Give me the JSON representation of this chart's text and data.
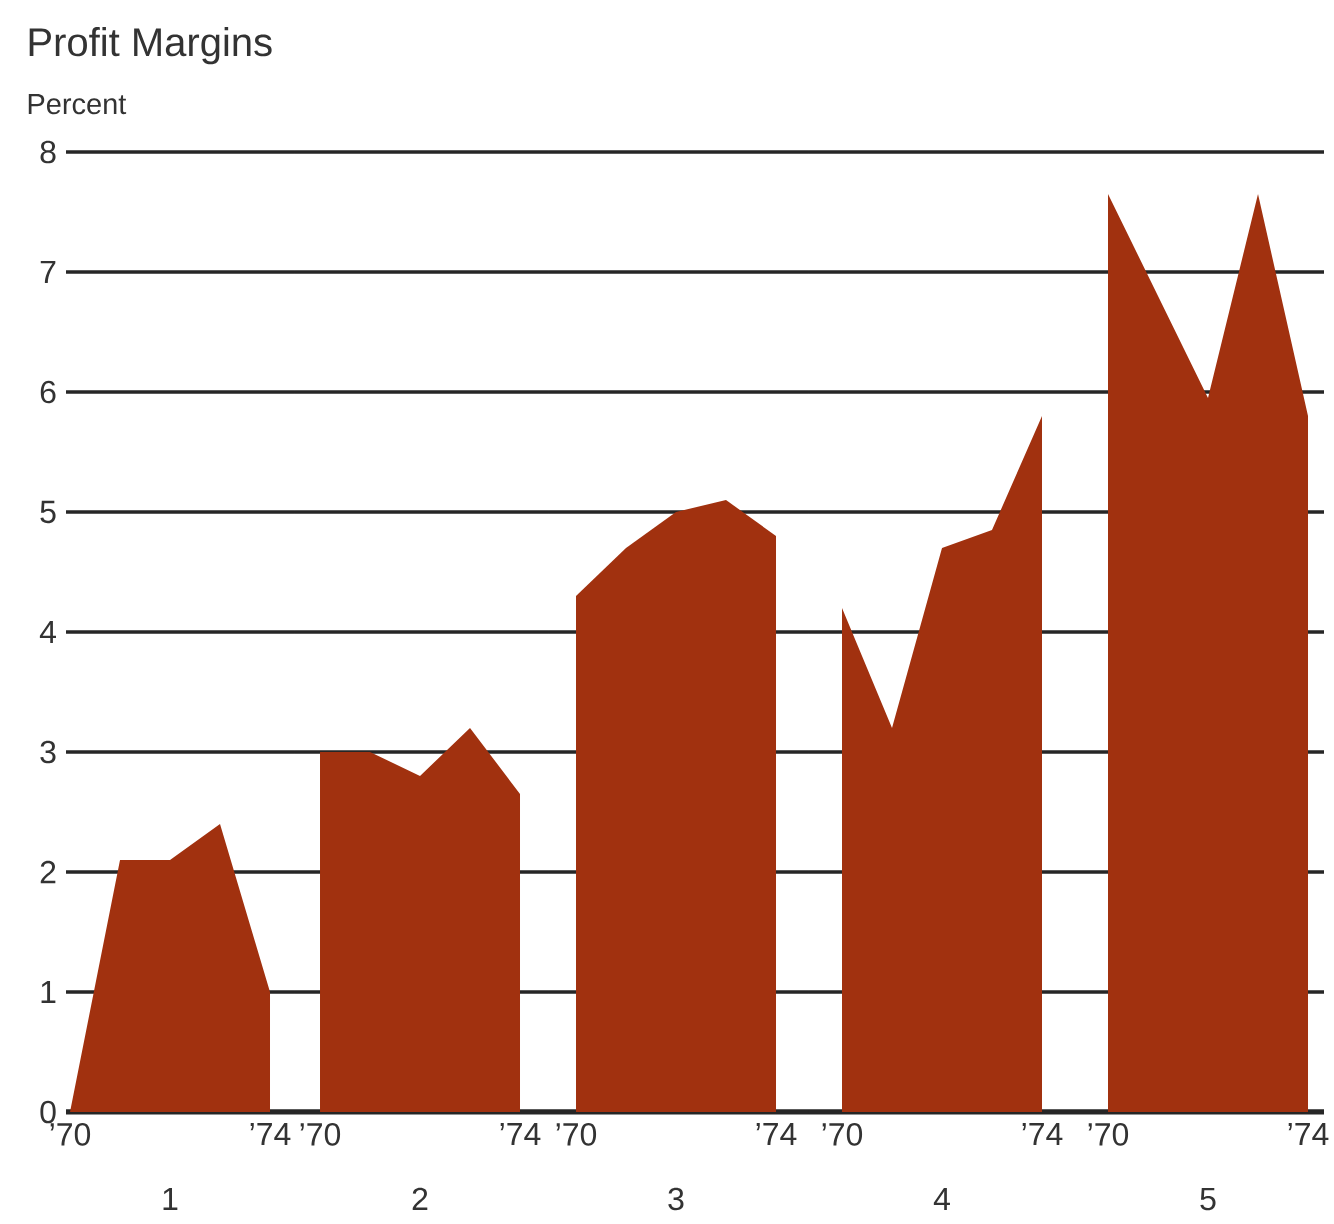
{
  "chart_data": [
    {
      "type": "area",
      "title": "Profit Margins",
      "ylabel": "Percent",
      "xlabel": "1",
      "categories": [
        "’70",
        null,
        null,
        null,
        "’74"
      ],
      "values": [
        0,
        2.1,
        2.1,
        2.4,
        1.0
      ],
      "color": "#a1310f",
      "ylim": [
        0,
        8
      ],
      "yticks": [
        0,
        1,
        2,
        3,
        4,
        5,
        6,
        7,
        8
      ],
      "grid": "y"
    },
    {
      "type": "area",
      "xlabel": "2",
      "categories": [
        "’70",
        null,
        null,
        null,
        "’74"
      ],
      "values": [
        3.0,
        3.0,
        2.8,
        3.2,
        2.65
      ],
      "color": "#a1310f",
      "ylim": [
        0,
        8
      ],
      "yticks": [
        0,
        1,
        2,
        3,
        4,
        5,
        6,
        7,
        8
      ],
      "grid": "y",
      "tick_labels": "x"
    },
    {
      "type": "area",
      "xlabel": "3",
      "categories": [
        "’70",
        null,
        null,
        null,
        "’74"
      ],
      "values": [
        4.3,
        4.7,
        5.0,
        5.1,
        4.8
      ],
      "color": "#a1310f",
      "ylim": [
        0,
        8
      ],
      "yticks": [
        0,
        1,
        2,
        3,
        4,
        5,
        6,
        7,
        8
      ],
      "grid": "y",
      "tick_labels": "x"
    },
    {
      "type": "area",
      "xlabel": "4",
      "categories": [
        "’70",
        null,
        null,
        null,
        "’74"
      ],
      "values": [
        4.2,
        3.2,
        4.7,
        4.85,
        5.8
      ],
      "color": "#a1310f",
      "ylim": [
        0,
        8
      ],
      "yticks": [
        0,
        1,
        2,
        3,
        4,
        5,
        6,
        7,
        8
      ],
      "grid": "y",
      "tick_labels": "x"
    },
    {
      "type": "area",
      "xlabel": "5",
      "categories": [
        "’70",
        null,
        null,
        null,
        "’74"
      ],
      "values": [
        7.65,
        6.8,
        5.95,
        7.65,
        5.8
      ],
      "color": "#a1310f",
      "ylim": [
        0,
        8
      ],
      "yticks": [
        0,
        1,
        2,
        3,
        4,
        5,
        6,
        7,
        8
      ],
      "grid": "y",
      "tick_labels": "x"
    }
  ]
}
